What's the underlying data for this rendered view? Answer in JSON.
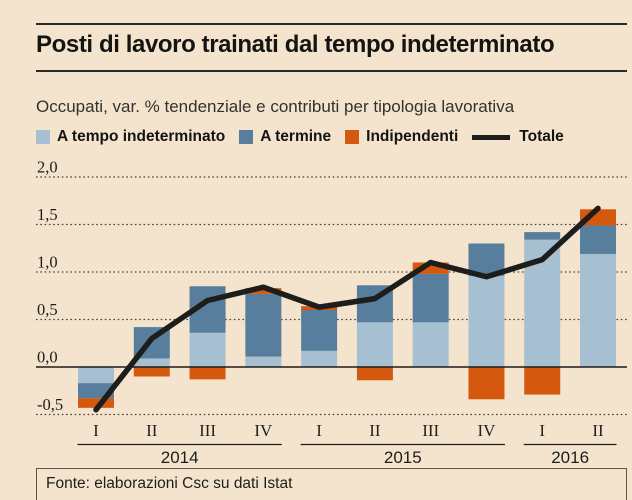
{
  "page": {
    "title": "Posti di lavoro trainati dal tempo indeterminato",
    "subtitle": "Occupati, var. % tendenziale e contributi per tipologia lavorativa",
    "source": "Fonte: elaborazioni Csc su dati Istat",
    "background_color": "#f4e4cd",
    "text_color": "#1d1d1b"
  },
  "legend": [
    {
      "label": "A tempo indeterminato",
      "color": "#a6c0d2",
      "type": "square"
    },
    {
      "label": "A termine",
      "color": "#577f9d",
      "type": "square"
    },
    {
      "label": "Indipendenti",
      "color": "#d4590e",
      "type": "square"
    },
    {
      "label": "Totale",
      "color": "#1d1d1b",
      "type": "line"
    }
  ],
  "chart_data": {
    "type": "bar",
    "subtype": "stacked-bars-with-total-line",
    "categories": [
      "I",
      "II",
      "III",
      "IV",
      "I",
      "II",
      "III",
      "IV",
      "I",
      "II"
    ],
    "year_groups": [
      {
        "label": "2014",
        "span": 4
      },
      {
        "label": "2015",
        "span": 4
      },
      {
        "label": "2016",
        "span": 2
      }
    ],
    "series": [
      {
        "name": "A tempo indeterminato",
        "color": "#a6c0d2",
        "values": [
          -0.17,
          0.09,
          0.36,
          0.11,
          0.17,
          0.47,
          0.47,
          0.96,
          1.34,
          1.19
        ]
      },
      {
        "name": "A termine",
        "color": "#577f9d",
        "values": [
          -0.16,
          0.33,
          0.49,
          0.66,
          0.43,
          0.39,
          0.51,
          0.34,
          0.08,
          0.3
        ]
      },
      {
        "name": "Indipendenti",
        "color": "#d4590e",
        "values": [
          -0.1,
          -0.1,
          -0.13,
          0.06,
          0.04,
          -0.14,
          0.12,
          -0.34,
          -0.29,
          0.17
        ]
      }
    ],
    "line_series": {
      "name": "Totale",
      "color": "#1d1d1b",
      "values": [
        -0.45,
        0.3,
        0.7,
        0.84,
        0.63,
        0.72,
        1.1,
        0.95,
        1.13,
        1.67
      ]
    },
    "y_ticks": [
      "2,0",
      "1,5",
      "1,0",
      "0,5",
      "0,0",
      "-0,5"
    ],
    "y_tick_values": [
      2.0,
      1.5,
      1.0,
      0.5,
      0.0,
      -0.5
    ],
    "ylim": [
      -0.62,
      2.15
    ],
    "xlabel": "",
    "ylabel": "",
    "grid": "horizontal-dotted",
    "zero_line": true,
    "legend_position": "top"
  }
}
